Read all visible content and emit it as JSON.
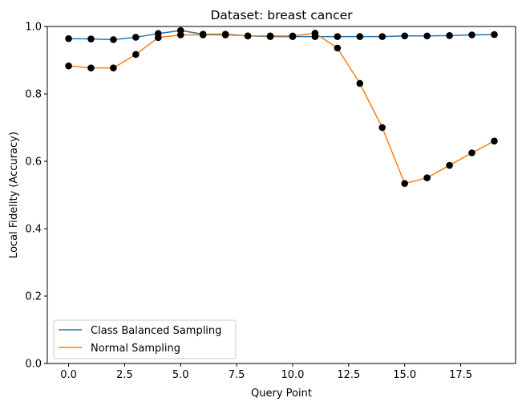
{
  "chart_data": {
    "type": "line",
    "title": "Dataset: breast cancer",
    "xlabel": "Query Point",
    "ylabel": "Local Fidelity (Accuracy)",
    "xlim": [
      -0.95,
      19.95
    ],
    "ylim": [
      0.0,
      1.0
    ],
    "xticks": [
      0.0,
      2.5,
      5.0,
      7.5,
      10.0,
      12.5,
      15.0,
      17.5
    ],
    "xtick_labels": [
      "0.0",
      "2.5",
      "5.0",
      "7.5",
      "10.0",
      "12.5",
      "15.0",
      "17.5"
    ],
    "yticks": [
      0.0,
      0.2,
      0.4,
      0.6,
      0.8,
      1.0
    ],
    "ytick_labels": [
      "0.0",
      "0.2",
      "0.4",
      "0.6",
      "0.8",
      "1.0"
    ],
    "grid": false,
    "legend_position": "lower-left",
    "marker_color": "#000000",
    "x": [
      0,
      1,
      2,
      3,
      4,
      5,
      6,
      7,
      8,
      9,
      10,
      11,
      12,
      13,
      14,
      15,
      16,
      17,
      18,
      19
    ],
    "series": [
      {
        "name": "Class Balanced Sampling",
        "color": "#1f77b4",
        "values": [
          0.964,
          0.963,
          0.961,
          0.968,
          0.979,
          0.988,
          0.977,
          0.977,
          0.972,
          0.97,
          0.97,
          0.97,
          0.97,
          0.97,
          0.97,
          0.972,
          0.972,
          0.973,
          0.975,
          0.976
        ]
      },
      {
        "name": "Normal Sampling",
        "color": "#ff7f0e",
        "values": [
          0.883,
          0.877,
          0.877,
          0.917,
          0.967,
          0.975,
          0.975,
          0.975,
          0.972,
          0.972,
          0.972,
          0.98,
          0.936,
          0.831,
          0.7,
          0.534,
          0.551,
          0.588,
          0.625,
          0.66
        ]
      }
    ]
  }
}
